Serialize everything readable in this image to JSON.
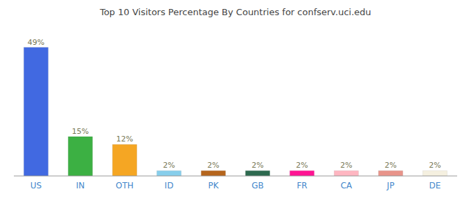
{
  "chart_data": {
    "type": "bar",
    "title": "Top 10 Visitors Percentage By Countries for confserv.uci.edu",
    "categories": [
      "US",
      "IN",
      "OTH",
      "ID",
      "PK",
      "GB",
      "FR",
      "CA",
      "JP",
      "DE"
    ],
    "values": [
      49,
      15,
      12,
      2,
      2,
      2,
      2,
      2,
      2,
      2
    ],
    "value_labels": [
      "49%",
      "15%",
      "12%",
      "2%",
      "2%",
      "2%",
      "2%",
      "2%",
      "2%",
      "2%"
    ],
    "colors": [
      "#4169e1",
      "#3cb043",
      "#f5a623",
      "#87ceeb",
      "#b5651d",
      "#2d6a4f",
      "#ff1493",
      "#ffb6c1",
      "#e8948a",
      "#f5f0e0"
    ],
    "ylim": [
      0,
      56
    ],
    "grid": false,
    "data_labels": true,
    "tick_labels": "x"
  }
}
